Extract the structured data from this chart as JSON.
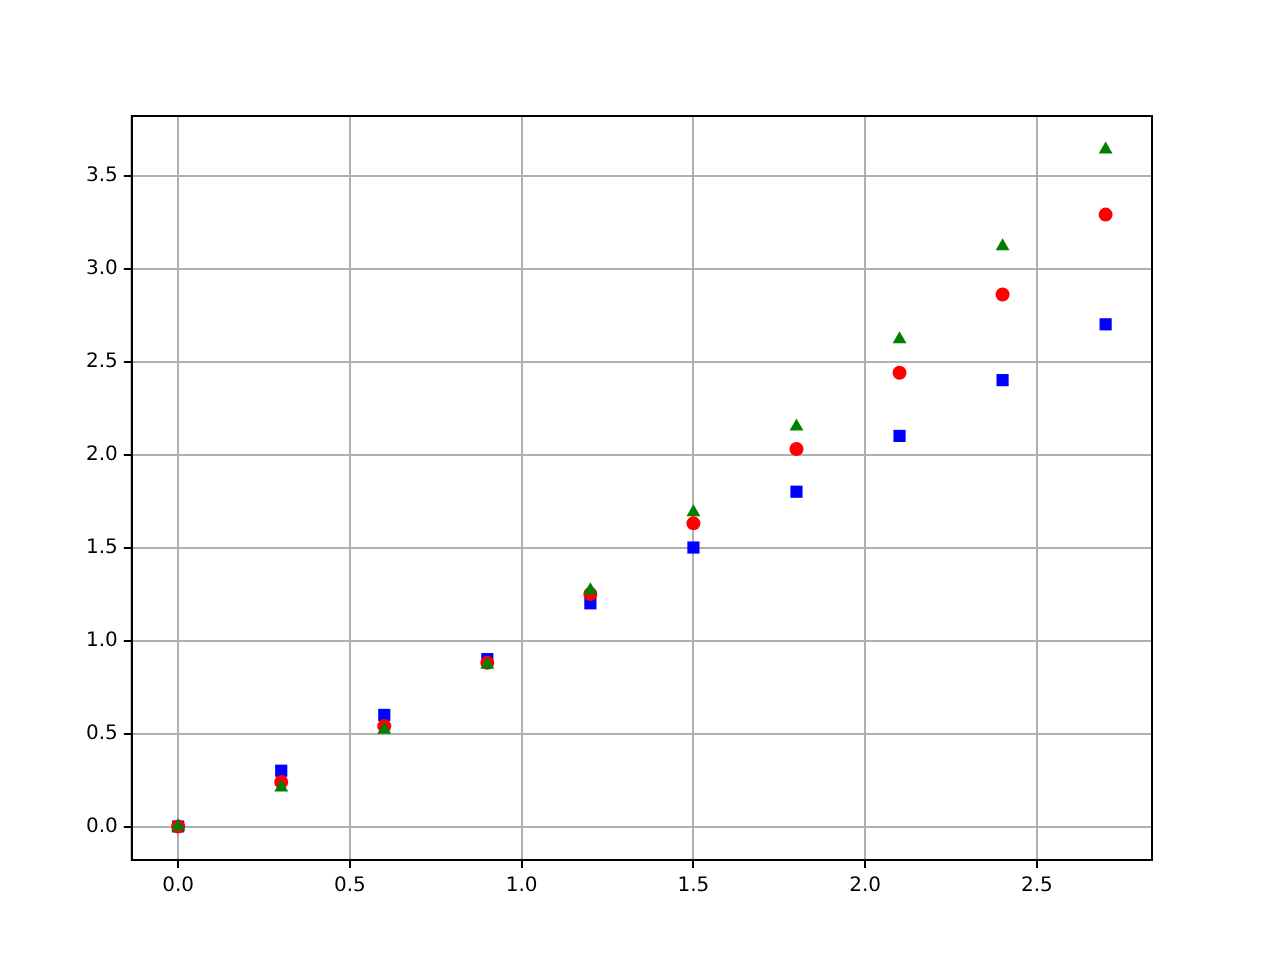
{
  "chart_data": {
    "type": "scatter",
    "x": [
      0,
      0.3,
      0.6,
      0.9,
      1.2,
      1.5,
      1.8,
      2.1,
      2.4,
      2.7
    ],
    "series": [
      {
        "color": "#0000ff",
        "marker": "square",
        "values": [
          0,
          0.3,
          0.6,
          0.9,
          1.2,
          1.5,
          1.8,
          2.1,
          2.4,
          2.7
        ]
      },
      {
        "color": "#ff0000",
        "marker": "circle",
        "values": [
          0,
          0.24,
          0.54,
          0.88,
          1.25,
          1.63,
          2.03,
          2.44,
          2.86,
          3.29
        ]
      },
      {
        "color": "#008000",
        "marker": "triangle",
        "values": [
          0,
          0.21,
          0.52,
          0.87,
          1.27,
          1.69,
          2.15,
          2.62,
          3.12,
          3.64
        ]
      }
    ],
    "xlim": [
      -0.135,
      2.835
    ],
    "ylim": [
      -0.18,
      3.82
    ],
    "xticks": [
      {
        "value": 0,
        "label": "0.0"
      },
      {
        "value": 0.5,
        "label": "0.5"
      },
      {
        "value": 1,
        "label": "1.0"
      },
      {
        "value": 1.5,
        "label": "1.5"
      },
      {
        "value": 2,
        "label": "2.0"
      },
      {
        "value": 2.5,
        "label": "2.5"
      }
    ],
    "yticks": [
      {
        "value": 0,
        "label": "0.0"
      },
      {
        "value": 0.5,
        "label": "0.5"
      },
      {
        "value": 1,
        "label": "1.0"
      },
      {
        "value": 1.5,
        "label": "1.5"
      },
      {
        "value": 2,
        "label": "2.0"
      },
      {
        "value": 2.5,
        "label": "2.5"
      },
      {
        "value": 3,
        "label": "3.0"
      },
      {
        "value": 3.5,
        "label": "3.5"
      }
    ],
    "grid": true,
    "legend": false
  }
}
